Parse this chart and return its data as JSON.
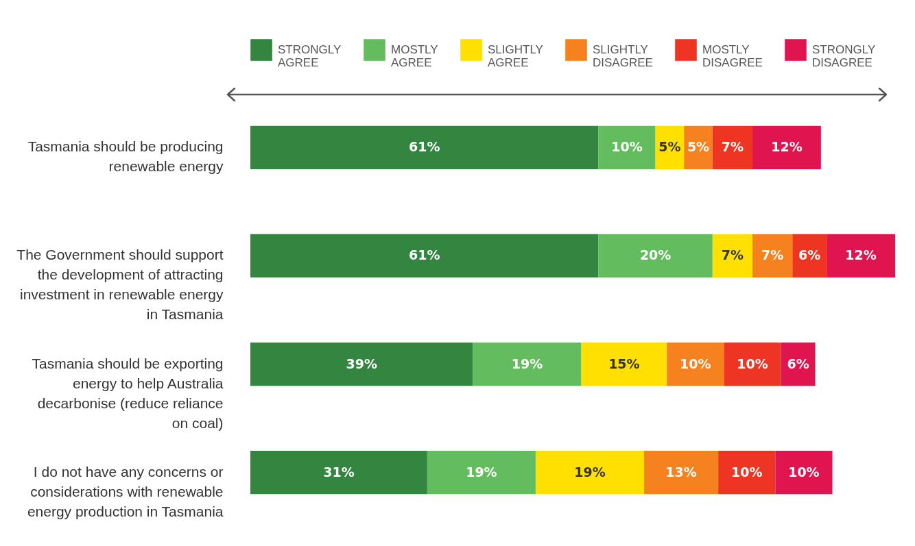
{
  "chart_data": {
    "type": "bar",
    "orientation": "horizontal",
    "stacked": true,
    "tick_labels": "y",
    "legend": "top",
    "categories": [
      "Tasmania should be producing renewable energy",
      "The Government should support the development of attracting investment in renewable energy in Tasmania",
      "Tasmania should be exporting energy to help Australia decarbonise (reduce reliance on coal)",
      "I do not have any concerns or considerations with renewable energy production in Tasmania"
    ],
    "series": [
      {
        "name": "STRONGLY AGREE",
        "color": "#33853f",
        "values": [
          61,
          61,
          39,
          31
        ],
        "value_labels": [
          "61%",
          "61%",
          "39%",
          "31%"
        ]
      },
      {
        "name": "MOSTLY AGREE",
        "color": "#63bd5f",
        "values": [
          10,
          20,
          19,
          19
        ],
        "value_labels": [
          "10%",
          "20%",
          "19%",
          "19%"
        ]
      },
      {
        "name": "SLIGHTLY AGREE",
        "color": "#ffe000",
        "values": [
          5,
          7,
          15,
          19
        ],
        "value_labels": [
          "5%",
          "7%",
          "15%",
          "19%"
        ]
      },
      {
        "name": "SLIGHTLY DISAGREE",
        "color": "#f5821f",
        "values": [
          5,
          7,
          10,
          13
        ],
        "value_labels": [
          "5%",
          "7%",
          "10%",
          "13%"
        ]
      },
      {
        "name": "MOSTLY DISAGREE",
        "color": "#ee3524",
        "values": [
          7,
          6,
          10,
          10
        ],
        "value_labels": [
          "7%",
          "6%",
          "10%",
          "10%"
        ]
      },
      {
        "name": "STRONGLY DISAGREE",
        "color": "#e0144f",
        "values": [
          12,
          12,
          6,
          10
        ],
        "value_labels": [
          "12%",
          "12%",
          "6%",
          "10%"
        ]
      }
    ]
  }
}
